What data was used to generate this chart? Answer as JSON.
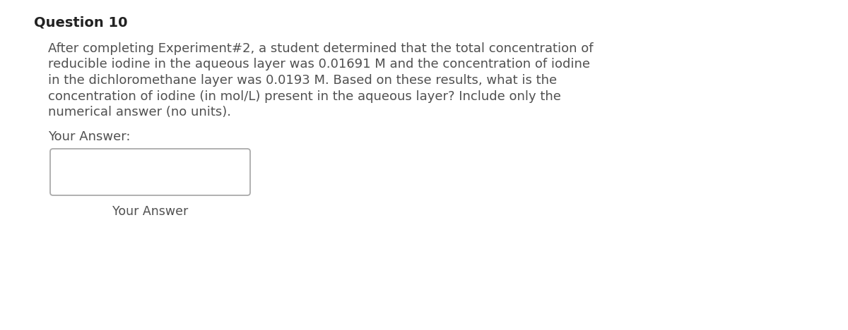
{
  "title": "Question 10",
  "body_lines": [
    "After completing Experiment#2, a student determined that the total concentration of",
    "reducible iodine in the aqueous layer was 0.01691 M and the concentration of iodine",
    "in the dichloromethane layer was 0.0193 M. Based on these results, what is the",
    "concentration of iodine (in mol/L) present in the aqueous layer? Include only the",
    "numerical answer (no units)."
  ],
  "your_answer_label": "Your Answer:",
  "input_label": "Your Answer",
  "background_color": "#ffffff",
  "text_color": "#505050",
  "title_color": "#222222",
  "box_edge_color": "#aaaaaa",
  "title_fontsize": 14,
  "body_fontsize": 13,
  "label_fontsize": 13,
  "input_label_fontsize": 12.5
}
